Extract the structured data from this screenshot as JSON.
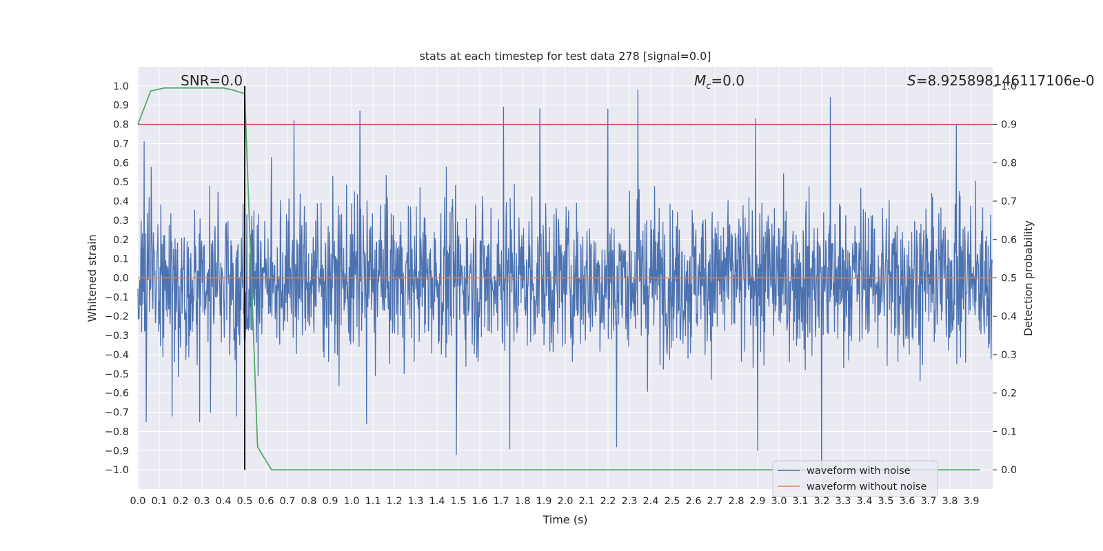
{
  "chart_data": {
    "type": "line",
    "title": "stats at each timestep for test data 278 [signal=0.0]",
    "xlabel": "Time (s)",
    "ylabel": "Whitened strain",
    "ylabel_right": "Detection probability",
    "xlim": [
      0.0,
      4.0
    ],
    "ylim": [
      -1.1,
      1.1
    ],
    "ylim_right": [
      -0.05,
      1.05
    ],
    "x_ticks": [
      "0.0",
      "0.1",
      "0.2",
      "0.3",
      "0.4",
      "0.5",
      "0.6",
      "0.7",
      "0.8",
      "0.9",
      "1.0",
      "1.1",
      "1.2",
      "1.3",
      "1.4",
      "1.5",
      "1.6",
      "1.7",
      "1.8",
      "1.9",
      "2.0",
      "2.1",
      "2.2",
      "2.3",
      "2.4",
      "2.5",
      "2.6",
      "2.7",
      "2.8",
      "2.9",
      "3.0",
      "3.1",
      "3.2",
      "3.3",
      "3.4",
      "3.5",
      "3.6",
      "3.7",
      "3.8",
      "3.9"
    ],
    "y_ticks": [
      "1.0",
      "0.9",
      "0.8",
      "0.7",
      "0.6",
      "0.5",
      "0.4",
      "0.3",
      "0.2",
      "0.1",
      "0.0",
      "−0.1",
      "−0.2",
      "−0.3",
      "−0.4",
      "−0.5",
      "−0.6",
      "−0.7",
      "−0.8",
      "−0.9",
      "−1.0"
    ],
    "y_ticks_right": [
      "1.0",
      "0.9",
      "0.8",
      "0.7",
      "0.6",
      "0.5",
      "0.4",
      "0.3",
      "0.2",
      "0.1",
      "0.0"
    ],
    "annotations": {
      "snr": "SNR=0.0",
      "mc_symbol": "M",
      "mc_sub": "c",
      "mc_value": "=0.0",
      "s_symbol": "S",
      "s_value": "=8.925898146117106e-0"
    },
    "legend": {
      "placement": "bottom-right",
      "entries": [
        "waveform with noise",
        "waveform without noise"
      ]
    },
    "series": [
      {
        "name": "waveform with noise",
        "color": "#4c72b0",
        "axis": "left",
        "description": "noise around 0, peaks mostly within ±0.6, extremes near 0.98 and −1.0",
        "spikes": [
          {
            "x": 0.03,
            "y": 0.71
          },
          {
            "x": 0.04,
            "y": -0.75
          },
          {
            "x": 0.16,
            "y": -0.72
          },
          {
            "x": 0.29,
            "y": -0.75
          },
          {
            "x": 0.34,
            "y": -0.7
          },
          {
            "x": 0.46,
            "y": -0.72
          },
          {
            "x": 0.73,
            "y": 0.82
          },
          {
            "x": 1.04,
            "y": 0.87
          },
          {
            "x": 1.07,
            "y": -0.76
          },
          {
            "x": 1.49,
            "y": -0.92
          },
          {
            "x": 1.71,
            "y": 0.89
          },
          {
            "x": 1.74,
            "y": -0.89
          },
          {
            "x": 1.88,
            "y": 0.88
          },
          {
            "x": 2.2,
            "y": 0.88
          },
          {
            "x": 2.24,
            "y": -0.88
          },
          {
            "x": 2.34,
            "y": 0.98
          },
          {
            "x": 2.89,
            "y": 0.83
          },
          {
            "x": 2.9,
            "y": -0.9
          },
          {
            "x": 3.2,
            "y": -1.0
          },
          {
            "x": 3.24,
            "y": 0.94
          },
          {
            "x": 3.83,
            "y": 0.8
          }
        ]
      },
      {
        "name": "waveform without noise",
        "color": "#dd8452",
        "axis": "left",
        "x": [
          0.0,
          4.0
        ],
        "y": [
          0.0,
          0.0
        ]
      },
      {
        "name": "detection probability",
        "color": "#55a868",
        "axis": "right",
        "x": [
          0.0,
          0.06,
          0.125,
          0.2,
          0.3,
          0.4,
          0.44,
          0.5,
          0.56,
          0.625,
          1.0,
          2.0,
          3.0,
          3.94
        ],
        "y": [
          0.9,
          0.987,
          0.995,
          0.995,
          0.995,
          0.995,
          0.99,
          0.98,
          0.06,
          0.0,
          0.0,
          0.0,
          0.0,
          0.0
        ]
      }
    ],
    "hlines": [
      {
        "name": "threshold",
        "color": "#c44e52",
        "axis": "right",
        "y": 0.9
      }
    ],
    "vlines": [
      {
        "name": "signal-marker",
        "color": "#000000",
        "axis": "left",
        "x": 0.5,
        "ymin": -1.0,
        "ymax": 1.0
      }
    ]
  }
}
